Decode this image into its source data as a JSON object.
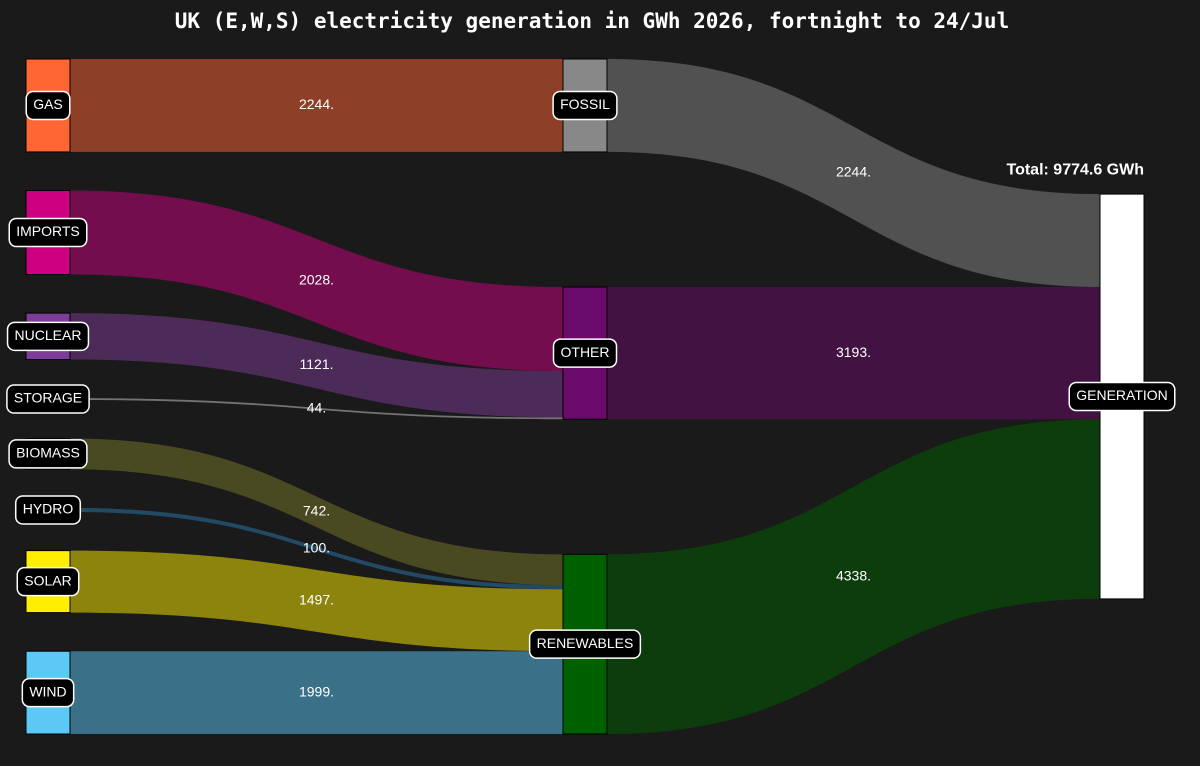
{
  "chart_data": {
    "type": "sankey",
    "title": "UK (E,W,S) electricity generation in GWh 2026, fortnight to 24/Jul",
    "annotation": "Total: 9774.6 GWh",
    "nodes": [
      "GAS",
      "IMPORTS",
      "NUCLEAR",
      "STORAGE",
      "BIOMASS",
      "HYDRO",
      "SOLAR",
      "WIND",
      "FOSSIL",
      "OTHER",
      "RENEWABLES",
      "GENERATION"
    ],
    "node_colors": [
      "#ff6633",
      "#cc0080",
      "#7d3c98",
      "#cccccc",
      "#7a7a2a",
      "#2a7ab0",
      "#ffee00",
      "#5bc8f5",
      "#888888",
      "#6a0a6a",
      "#006000",
      "#ffffff"
    ],
    "link_opacity": 0.5,
    "sources": [
      "GAS",
      "IMPORTS",
      "NUCLEAR",
      "STORAGE",
      "BIOMASS",
      "HYDRO",
      "SOLAR",
      "WIND",
      "FOSSIL",
      "OTHER",
      "RENEWABLES"
    ],
    "targets": [
      "FOSSIL",
      "OTHER",
      "OTHER",
      "OTHER",
      "RENEWABLES",
      "RENEWABLES",
      "RENEWABLES",
      "RENEWABLES",
      "GENERATION",
      "GENERATION",
      "GENERATION"
    ],
    "values": [
      2244,
      2028,
      1121,
      44,
      742,
      100,
      1497,
      1999,
      2244,
      3193,
      4338
    ],
    "value_labels": [
      "2244.",
      "2028.",
      "1121.",
      "44.",
      "742.",
      "100.",
      "1497.",
      "1999.",
      "2244.",
      "3193.",
      "4338."
    ]
  }
}
